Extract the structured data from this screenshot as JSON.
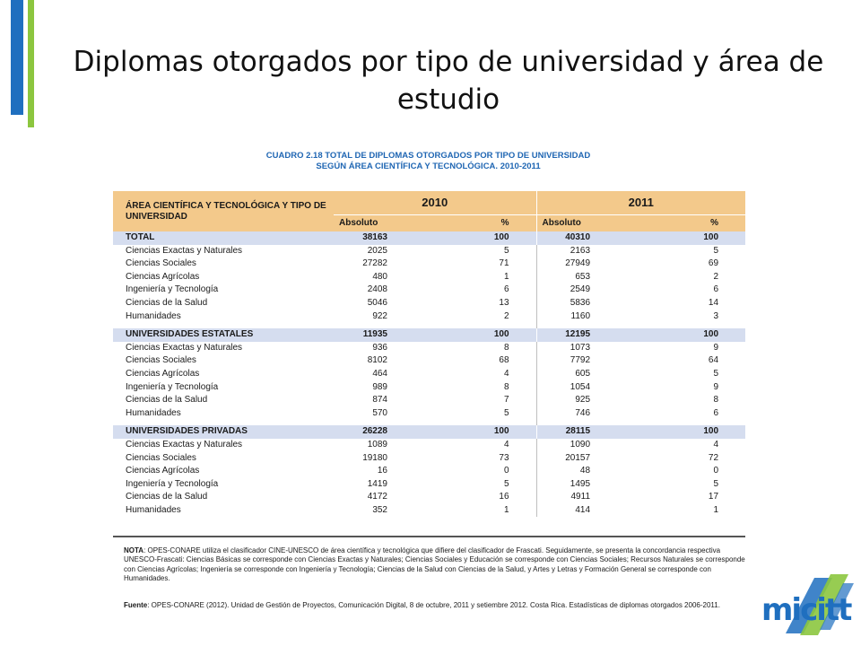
{
  "slide": {
    "title": "Diplomas otorgados por tipo de universidad y área de estudio"
  },
  "table": {
    "caption_line1": "CUADRO 2.18 TOTAL DE DIPLOMAS OTORGADOS POR TIPO DE UNIVERSIDAD",
    "caption_line2": "SEGÚN ÁREA CIENTÍFICA Y TECNOLÓGICA. 2010-2011",
    "header_area": "ÁREA CIENTÍFICA Y TECNOLÓGICA Y TIPO DE UNIVERSIDAD",
    "year_2010": "2010",
    "year_2011": "2011",
    "col_absoluto": "Absoluto",
    "col_pct": "%",
    "groups": [
      {
        "name": "TOTAL",
        "v2010": "38163",
        "p2010": "100",
        "v2011": "40310",
        "p2011": "100",
        "rows": [
          {
            "label": "Ciencias Exactas y Naturales",
            "v2010": "2025",
            "p2010": "5",
            "v2011": "2163",
            "p2011": "5"
          },
          {
            "label": "Ciencias Sociales",
            "v2010": "27282",
            "p2010": "71",
            "v2011": "27949",
            "p2011": "69"
          },
          {
            "label": "Ciencias Agrícolas",
            "v2010": "480",
            "p2010": "1",
            "v2011": "653",
            "p2011": "2"
          },
          {
            "label": "Ingeniería y Tecnología",
            "v2010": "2408",
            "p2010": "6",
            "v2011": "2549",
            "p2011": "6"
          },
          {
            "label": "Ciencias de la Salud",
            "v2010": "5046",
            "p2010": "13",
            "v2011": "5836",
            "p2011": "14"
          },
          {
            "label": "Humanidades",
            "v2010": "922",
            "p2010": "2",
            "v2011": "1160",
            "p2011": "3"
          }
        ]
      },
      {
        "name": "UNIVERSIDADES ESTATALES",
        "v2010": "11935",
        "p2010": "100",
        "v2011": "12195",
        "p2011": "100",
        "rows": [
          {
            "label": "Ciencias Exactas y Naturales",
            "v2010": "936",
            "p2010": "8",
            "v2011": "1073",
            "p2011": "9"
          },
          {
            "label": "Ciencias Sociales",
            "v2010": "8102",
            "p2010": "68",
            "v2011": "7792",
            "p2011": "64"
          },
          {
            "label": "Ciencias Agrícolas",
            "v2010": "464",
            "p2010": "4",
            "v2011": "605",
            "p2011": "5"
          },
          {
            "label": "Ingeniería y Tecnología",
            "v2010": "989",
            "p2010": "8",
            "v2011": "1054",
            "p2011": "9"
          },
          {
            "label": "Ciencias de la Salud",
            "v2010": "874",
            "p2010": "7",
            "v2011": "925",
            "p2011": "8"
          },
          {
            "label": "Humanidades",
            "v2010": "570",
            "p2010": "5",
            "v2011": "746",
            "p2011": "6"
          }
        ]
      },
      {
        "name": "UNIVERSIDADES PRIVADAS",
        "v2010": "26228",
        "p2010": "100",
        "v2011": "28115",
        "p2011": "100",
        "rows": [
          {
            "label": "Ciencias Exactas y Naturales",
            "v2010": "1089",
            "p2010": "4",
            "v2011": "1090",
            "p2011": "4"
          },
          {
            "label": "Ciencias Sociales",
            "v2010": "19180",
            "p2010": "73",
            "v2011": "20157",
            "p2011": "72"
          },
          {
            "label": "Ciencias Agrícolas",
            "v2010": "16",
            "p2010": "0",
            "v2011": "48",
            "p2011": "0"
          },
          {
            "label": "Ingeniería y Tecnología",
            "v2010": "1419",
            "p2010": "5",
            "v2011": "1495",
            "p2011": "5"
          },
          {
            "label": "Ciencias de la Salud",
            "v2010": "4172",
            "p2010": "16",
            "v2011": "4911",
            "p2011": "17"
          },
          {
            "label": "Humanidades",
            "v2010": "352",
            "p2010": "1",
            "v2011": "414",
            "p2011": "1"
          }
        ]
      }
    ],
    "note_label": "NOTA",
    "note_text": ": OPES-CONARE utiliza el clasificador CINE-UNESCO de área científica y tecnológica que difiere del clasificador de Frascati. Seguidamente, se presenta la concordancia respectiva UNESCO-Frascati: Ciencias Básicas se corresponde con Ciencias Exactas y Naturales; Ciencias Sociales y Educación se corresponde con Ciencias Sociales; Recursos Naturales se corresponde con Ciencias Agrícolas; Ingeniería se corresponde con Ingeniería y Tecnología; Ciencias de la Salud con Ciencias de la Salud, y Artes y Letras y Formación General se corresponde con Humanidades.",
    "source_label": "Fuente",
    "source_text": ": OPES-CONARE (2012). Unidad de Gestión de Proyectos, Comunicación Digital, 8 de octubre, 2011 y setiembre 2012. Costa Rica. Estadísticas de diplomas otorgados 2006-2011."
  },
  "logo": {
    "text": "micitt",
    "color_blue": "#1f6fbf",
    "color_green": "#8cc63f"
  },
  "colors": {
    "accent_blue": "#1f6fbf",
    "accent_green": "#8cc63f",
    "header_fill": "#f3c98b",
    "total_fill": "#d5ddef"
  }
}
